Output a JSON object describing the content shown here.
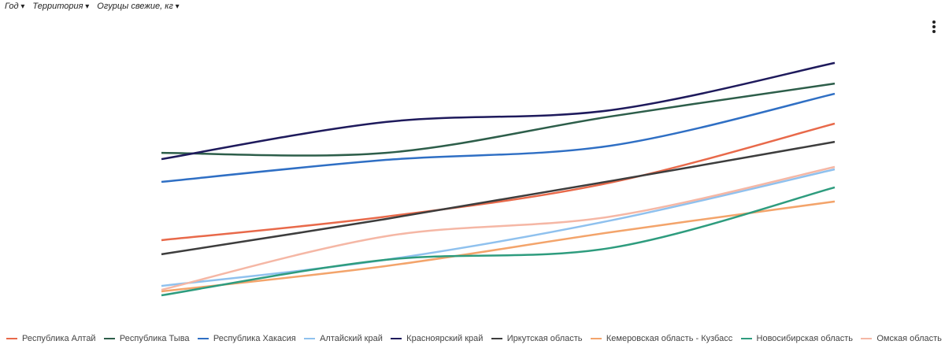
{
  "filters": [
    {
      "label": "Год"
    },
    {
      "label": "Территория"
    },
    {
      "label": "Огурцы свежие, кг"
    }
  ],
  "chart_data": {
    "type": "line",
    "ylim": [
      0,
      100
    ],
    "categories": [
      null,
      null,
      null,
      null
    ],
    "series": [
      {
        "name": "Республика Алтай",
        "color": "#e8694a",
        "values": [
          23.2,
          32.2,
          45.2,
          67.8
        ]
      },
      {
        "name": "Республика Тыва",
        "color": "#2d5e4a",
        "values": [
          56.6,
          56.6,
          70.5,
          83.1
        ]
      },
      {
        "name": "Республика Хакасия",
        "color": "#2f6fc4",
        "values": [
          45.5,
          53.9,
          59.3,
          79.2
        ]
      },
      {
        "name": "Алтайский край",
        "color": "#8fc1ee",
        "values": [
          5.7,
          15.7,
          30.7,
          50.3
        ]
      },
      {
        "name": "Красноярский край",
        "color": "#1e1a5c",
        "values": [
          54.2,
          68.4,
          72.9,
          91.0
        ]
      },
      {
        "name": "Иркутская область",
        "color": "#3d3d3d",
        "values": [
          17.8,
          31.3,
          45.8,
          60.8
        ]
      },
      {
        "name": "Кемеровская область - Кузбасс",
        "color": "#f3a46b",
        "values": [
          3.6,
          13.3,
          26.2,
          38.0
        ]
      },
      {
        "name": "Новосибирская область",
        "color": "#2e9c7e",
        "values": [
          2.1,
          15.7,
          20.2,
          43.4
        ]
      },
      {
        "name": "Омская область",
        "color": "#f5b7a5",
        "values": [
          4.2,
          24.7,
          32.2,
          51.2
        ]
      }
    ]
  }
}
